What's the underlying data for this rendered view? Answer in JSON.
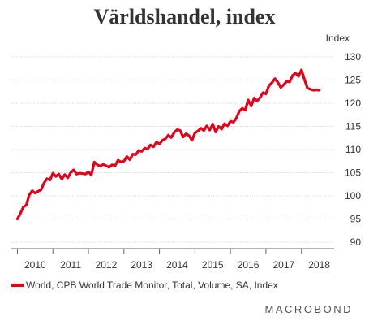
{
  "chart_data": {
    "type": "line",
    "title": "Världshandel, index",
    "ylabel": "Index",
    "xlabel": "",
    "ylim": [
      90,
      130
    ],
    "y_ticks": [
      90,
      95,
      100,
      105,
      110,
      115,
      120,
      125,
      130
    ],
    "xlim": [
      2009.83,
      2018.92
    ],
    "x_ticks": [
      "2010",
      "2011",
      "2012",
      "2013",
      "2014",
      "2015",
      "2016",
      "2017",
      "2018"
    ],
    "y_axis_position": "right",
    "grid": "horizontal",
    "legend_position": "bottom-left",
    "series_color": "#e2001a",
    "series": [
      {
        "name": "World, CPB World Trade Monitor, Total, Volume, SA, Index",
        "x": [
          2010.0,
          2010.083,
          2010.167,
          2010.25,
          2010.333,
          2010.417,
          2010.5,
          2010.583,
          2010.667,
          2010.75,
          2010.833,
          2010.917,
          2011.0,
          2011.083,
          2011.167,
          2011.25,
          2011.333,
          2011.417,
          2011.5,
          2011.583,
          2011.667,
          2011.75,
          2011.833,
          2011.917,
          2012.0,
          2012.083,
          2012.167,
          2012.25,
          2012.333,
          2012.417,
          2012.5,
          2012.583,
          2012.667,
          2012.75,
          2012.833,
          2012.917,
          2013.0,
          2013.083,
          2013.167,
          2013.25,
          2013.333,
          2013.417,
          2013.5,
          2013.583,
          2013.667,
          2013.75,
          2013.833,
          2013.917,
          2014.0,
          2014.083,
          2014.167,
          2014.25,
          2014.333,
          2014.417,
          2014.5,
          2014.583,
          2014.667,
          2014.75,
          2014.833,
          2014.917,
          2015.0,
          2015.083,
          2015.167,
          2015.25,
          2015.333,
          2015.417,
          2015.5,
          2015.583,
          2015.667,
          2015.75,
          2015.833,
          2015.917,
          2016.0,
          2016.083,
          2016.167,
          2016.25,
          2016.333,
          2016.417,
          2016.5,
          2016.583,
          2016.667,
          2016.75,
          2016.833,
          2016.917,
          2017.0,
          2017.083,
          2017.167,
          2017.25,
          2017.333,
          2017.417,
          2017.5,
          2017.583,
          2017.667,
          2017.75,
          2017.833,
          2017.917,
          2018.0,
          2018.083,
          2018.167,
          2018.25,
          2018.333,
          2018.417,
          2018.5
        ],
        "y": [
          95.0,
          96.2,
          97.6,
          98.0,
          100.2,
          101.1,
          100.6,
          101.0,
          101.3,
          102.8,
          103.7,
          103.4,
          104.9,
          104.2,
          104.7,
          103.6,
          104.6,
          103.9,
          105.0,
          105.6,
          104.7,
          104.9,
          104.8,
          104.7,
          105.2,
          104.5,
          107.3,
          106.7,
          106.4,
          106.8,
          106.5,
          106.2,
          106.7,
          106.5,
          107.7,
          107.3,
          107.5,
          108.5,
          107.8,
          109.0,
          108.9,
          109.8,
          109.6,
          110.3,
          110.1,
          111.0,
          110.6,
          111.6,
          111.2,
          112.0,
          112.3,
          113.1,
          112.6,
          113.7,
          114.3,
          114.1,
          112.7,
          113.4,
          113.0,
          112.0,
          113.6,
          114.0,
          114.6,
          114.1,
          115.1,
          114.2,
          115.5,
          113.8,
          115.0,
          114.4,
          115.6,
          115.1,
          116.1,
          115.9,
          116.8,
          118.3,
          118.9,
          118.5,
          120.7,
          119.4,
          121.1,
          120.5,
          121.2,
          122.3,
          122.0,
          123.8,
          124.4,
          125.3,
          124.5,
          123.4,
          124.0,
          124.7,
          124.6,
          126.0,
          126.5,
          125.8,
          127.2,
          125.1,
          123.3,
          123.0,
          122.8,
          122.9,
          122.8
        ]
      }
    ]
  },
  "logo_text": "MACROBOND"
}
